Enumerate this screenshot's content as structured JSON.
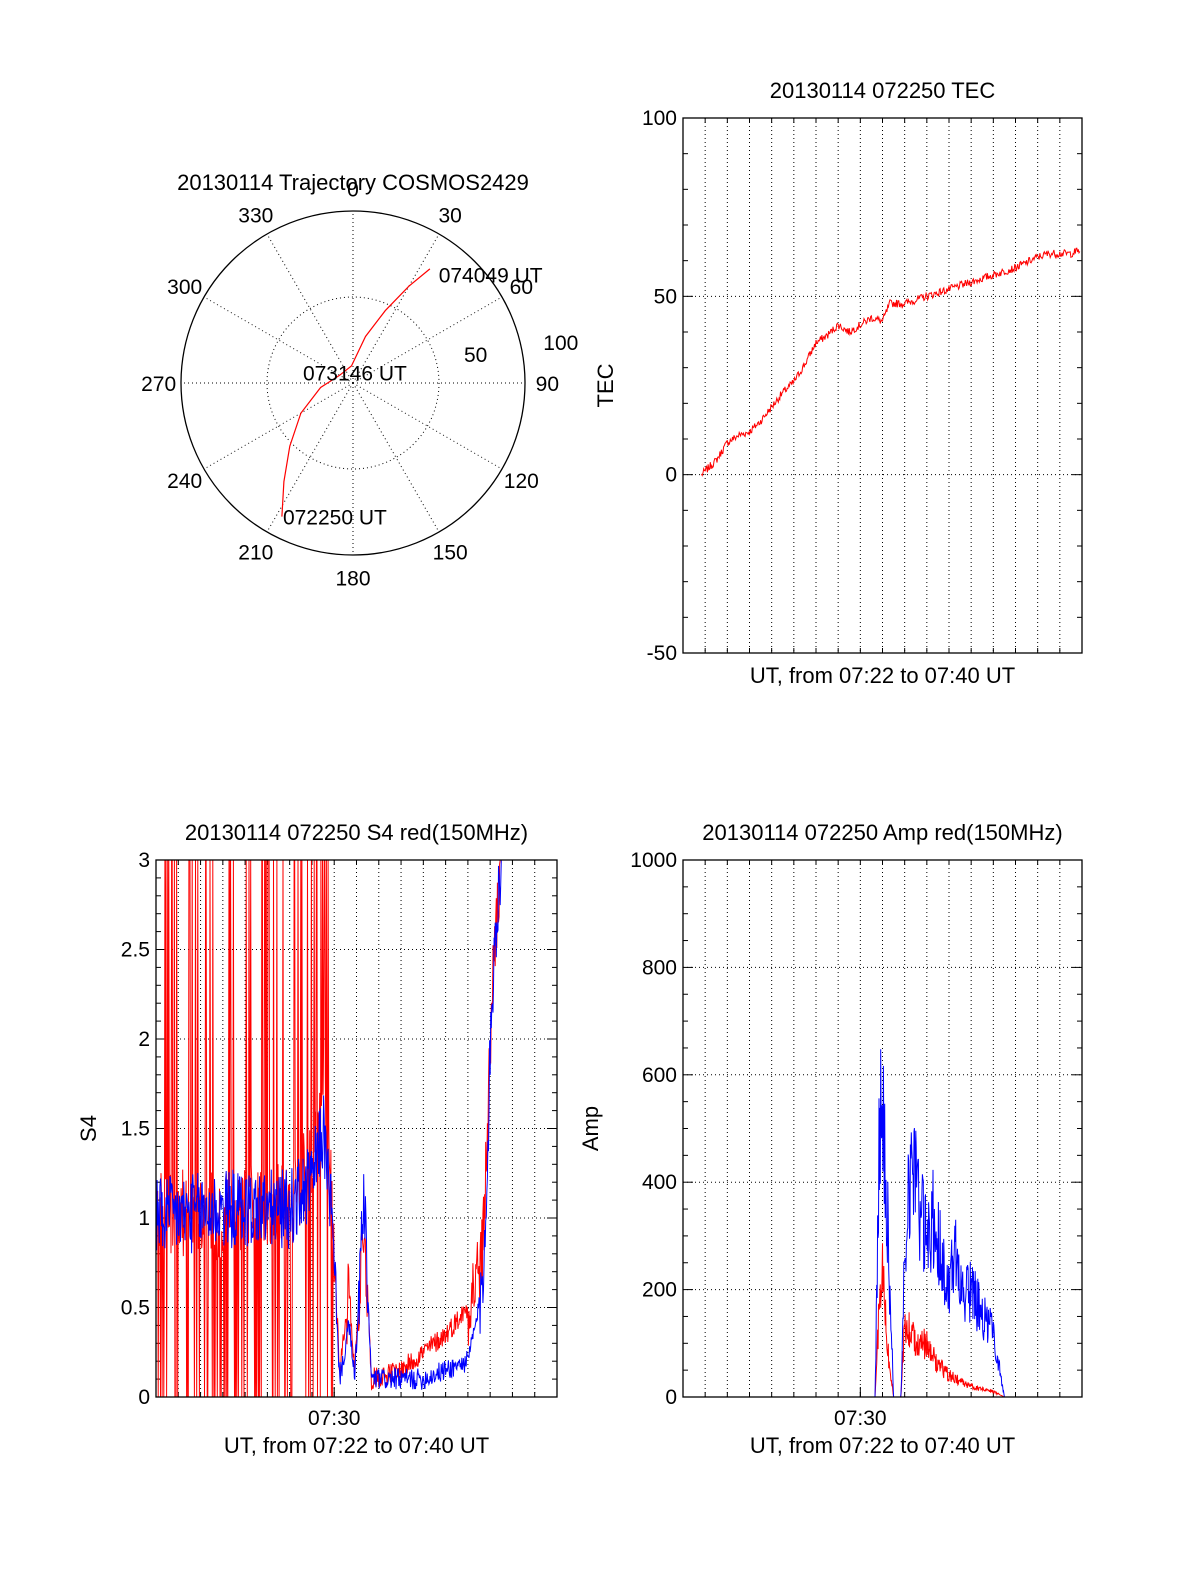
{
  "colors": {
    "red": "#ff0000",
    "blue": "#0000ff",
    "axis": "#000000",
    "grid": "#000000"
  },
  "chart_data": [
    {
      "id": "trajectory",
      "type": "polar",
      "title": "20130114 Trajectory COSMOS2429",
      "azimuth_labels": [
        "0",
        "30",
        "60",
        "90",
        "120",
        "150",
        "180",
        "210",
        "240",
        "270",
        "300",
        "330"
      ],
      "radial_labels": [
        "50",
        "100"
      ],
      "radial_max": 100,
      "grid": true,
      "annotations": [
        {
          "text": "074049 UT",
          "az": 38,
          "r": 80
        },
        {
          "text": "073146 UT",
          "az": 5,
          "r": 6
        },
        {
          "text": "072250 UT",
          "az": 208,
          "r": 88
        }
      ],
      "series": [
        {
          "color": "red",
          "points": [
            [
              208,
              88
            ],
            [
              215,
              70
            ],
            [
              225,
              52
            ],
            [
              240,
              35
            ],
            [
              262,
              19
            ],
            [
              300,
              9
            ],
            [
              355,
              10
            ],
            [
              15,
              28
            ],
            [
              24,
              46
            ],
            [
              30,
              65
            ],
            [
              34,
              80
            ]
          ]
        }
      ]
    },
    {
      "id": "tec",
      "type": "line",
      "title": "20130114 072250 TEC",
      "xlabel": "UT, from 07:22 to 07:40 UT",
      "ylabel": "TEC",
      "ylim": [
        -50,
        100
      ],
      "yticks": [
        "-50",
        "0",
        "50",
        "100"
      ],
      "xlim": [
        "07:22",
        "07:40"
      ],
      "grid": true,
      "series": [
        {
          "color": "red",
          "points": [
            [
              "07:22:50",
              0
            ],
            [
              "07:23:30",
              4
            ],
            [
              "07:24:00",
              9
            ],
            [
              "07:24:30",
              11
            ],
            [
              "07:25:00",
              12
            ],
            [
              "07:25:30",
              15
            ],
            [
              "07:26:00",
              19
            ],
            [
              "07:26:30",
              23
            ],
            [
              "07:27:00",
              26
            ],
            [
              "07:27:30",
              31
            ],
            [
              "07:28:00",
              37
            ],
            [
              "07:28:30",
              39
            ],
            [
              "07:29:00",
              42
            ],
            [
              "07:29:30",
              40
            ],
            [
              "07:30:00",
              42
            ],
            [
              "07:30:30",
              44
            ],
            [
              "07:31:00",
              43
            ],
            [
              "07:31:20",
              48
            ],
            [
              "07:32:00",
              48
            ],
            [
              "07:33:00",
              50
            ],
            [
              "07:34:00",
              52
            ],
            [
              "07:35:00",
              54
            ],
            [
              "07:36:00",
              56
            ],
            [
              "07:37:00",
              58
            ],
            [
              "07:38:00",
              61
            ],
            [
              "07:38:30",
              62
            ],
            [
              "07:39:00",
              62
            ],
            [
              "07:39:30",
              62
            ],
            [
              "07:39:55",
              63
            ]
          ]
        }
      ]
    },
    {
      "id": "s4",
      "type": "line",
      "title": "20130114 072250 S4 red(150MHz)",
      "xlabel": "UT, from 07:22 to 07:40 UT",
      "ylabel": "S4",
      "ylim": [
        0,
        3
      ],
      "yticks": [
        "0",
        "0.5",
        "1",
        "1.5",
        "2",
        "2.5",
        "3"
      ],
      "xticks": [
        "07:30"
      ],
      "xlim": [
        "07:22",
        "07:40"
      ],
      "grid": true,
      "series": [
        {
          "color": "red",
          "points": [
            [
              "07:22:00",
              1.05
            ],
            [
              "07:25:00",
              1.0
            ],
            [
              "07:28:00",
              1.1
            ],
            [
              "07:29:00",
              1.3
            ],
            [
              "07:29:30",
              1.8
            ],
            [
              "07:29:50",
              1.2
            ],
            [
              "07:30:15",
              0.15
            ],
            [
              "07:30:40",
              0.6
            ],
            [
              "07:30:55",
              0.15
            ],
            [
              "07:31:20",
              1.0
            ],
            [
              "07:31:40",
              0.1
            ],
            [
              "07:33:00",
              0.15
            ],
            [
              "07:34:00",
              0.25
            ],
            [
              "07:35:00",
              0.35
            ],
            [
              "07:36:00",
              0.5
            ],
            [
              "07:36:40",
              0.8
            ],
            [
              "07:37:10",
              2.5
            ],
            [
              "07:37:30",
              3.0
            ]
          ]
        },
        {
          "color": "blue",
          "points": [
            [
              "07:22:00",
              1.0
            ],
            [
              "07:25:00",
              1.05
            ],
            [
              "07:28:00",
              1.05
            ],
            [
              "07:29:00",
              1.2
            ],
            [
              "07:29:30",
              1.5
            ],
            [
              "07:29:50",
              1.1
            ],
            [
              "07:30:15",
              0.1
            ],
            [
              "07:30:40",
              0.4
            ],
            [
              "07:30:55",
              0.1
            ],
            [
              "07:31:20",
              1.1
            ],
            [
              "07:31:40",
              0.1
            ],
            [
              "07:33:00",
              0.1
            ],
            [
              "07:34:00",
              0.1
            ],
            [
              "07:35:00",
              0.15
            ],
            [
              "07:36:00",
              0.2
            ],
            [
              "07:36:40",
              0.6
            ],
            [
              "07:37:10",
              2.5
            ],
            [
              "07:37:30",
              3.0
            ]
          ]
        }
      ]
    },
    {
      "id": "amp",
      "type": "line",
      "title": "20130114 072250 Amp red(150MHz)",
      "xlabel": "UT, from 07:22 to 07:40 UT",
      "ylabel": "Amp",
      "ylim": [
        0,
        1000
      ],
      "yticks": [
        "0",
        "200",
        "400",
        "600",
        "800",
        "1000"
      ],
      "xticks": [
        "07:30"
      ],
      "xlim": [
        "07:22",
        "07:40"
      ],
      "grid": true,
      "series": [
        {
          "color": "red",
          "points": [
            [
              "07:22:00",
              0
            ],
            [
              "07:30:40",
              0
            ],
            [
              "07:30:50",
              150
            ],
            [
              "07:31:00",
              230
            ],
            [
              "07:31:15",
              80
            ],
            [
              "07:31:30",
              0
            ],
            [
              "07:31:50",
              0
            ],
            [
              "07:32:00",
              130
            ],
            [
              "07:32:30",
              110
            ],
            [
              "07:33:00",
              95
            ],
            [
              "07:33:30",
              60
            ],
            [
              "07:34:00",
              40
            ],
            [
              "07:34:30",
              30
            ],
            [
              "07:35:00",
              20
            ],
            [
              "07:35:30",
              15
            ],
            [
              "07:36:00",
              10
            ],
            [
              "07:36:30",
              0
            ],
            [
              "07:40:00",
              0
            ]
          ]
        },
        {
          "color": "blue",
          "points": [
            [
              "07:22:00",
              0
            ],
            [
              "07:30:40",
              0
            ],
            [
              "07:30:50",
              450
            ],
            [
              "07:31:00",
              600
            ],
            [
              "07:31:15",
              300
            ],
            [
              "07:31:30",
              0
            ],
            [
              "07:31:50",
              0
            ],
            [
              "07:32:00",
              300
            ],
            [
              "07:32:20",
              480
            ],
            [
              "07:32:40",
              350
            ],
            [
              "07:33:00",
              280
            ],
            [
              "07:33:20",
              340
            ],
            [
              "07:33:40",
              250
            ],
            [
              "07:34:00",
              200
            ],
            [
              "07:34:20",
              280
            ],
            [
              "07:34:40",
              180
            ],
            [
              "07:35:00",
              200
            ],
            [
              "07:35:30",
              150
            ],
            [
              "07:36:00",
              120
            ],
            [
              "07:36:30",
              0
            ],
            [
              "07:40:00",
              0
            ]
          ]
        }
      ]
    }
  ]
}
